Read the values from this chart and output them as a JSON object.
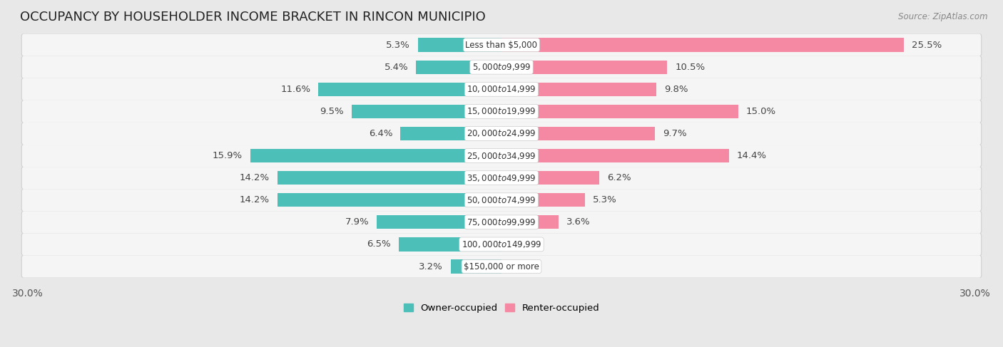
{
  "title": "OCCUPANCY BY HOUSEHOLDER INCOME BRACKET IN RINCON MUNICIPIO",
  "source": "Source: ZipAtlas.com",
  "categories": [
    "Less than $5,000",
    "$5,000 to $9,999",
    "$10,000 to $14,999",
    "$15,000 to $19,999",
    "$20,000 to $24,999",
    "$25,000 to $34,999",
    "$35,000 to $49,999",
    "$50,000 to $74,999",
    "$75,000 to $99,999",
    "$100,000 to $149,999",
    "$150,000 or more"
  ],
  "owner_values": [
    5.3,
    5.4,
    11.6,
    9.5,
    6.4,
    15.9,
    14.2,
    14.2,
    7.9,
    6.5,
    3.2
  ],
  "renter_values": [
    25.5,
    10.5,
    9.8,
    15.0,
    9.7,
    14.4,
    6.2,
    5.3,
    3.6,
    0.0,
    0.0
  ],
  "owner_color": "#4BBFB8",
  "renter_color": "#F589A3",
  "background_color": "#e8e8e8",
  "row_bg_color": "#f5f5f5",
  "row_border_color": "#d0d0d0",
  "bar_inner_bg": "#e8e8e8",
  "xlim": 30.0,
  "title_fontsize": 13,
  "label_fontsize": 9.5,
  "category_fontsize": 8.5,
  "legend_fontsize": 9.5,
  "source_fontsize": 8.5
}
